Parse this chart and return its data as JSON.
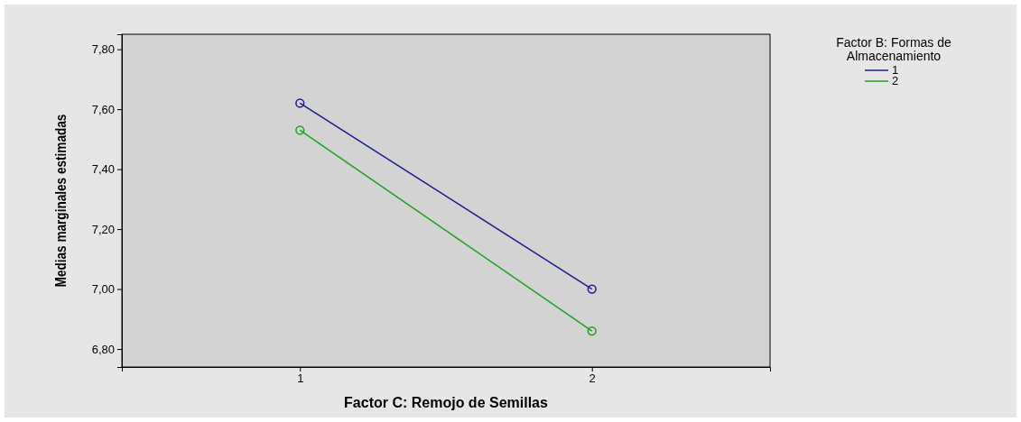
{
  "chart_data": {
    "type": "line",
    "xlabel": "Factor C: Remojo de Semillas",
    "ylabel": "Medias marginales estimadas",
    "legend_title": "Factor B: Formas de Almacenamiento",
    "categories": [
      "1",
      "2"
    ],
    "series": [
      {
        "name": "1",
        "color": "#1c1c8c",
        "values": [
          7.62,
          7.0
        ]
      },
      {
        "name": "2",
        "color": "#20a020",
        "values": [
          7.53,
          6.86
        ]
      }
    ],
    "ylim": [
      6.74,
      7.85
    ],
    "yticks": [
      {
        "value": 6.8,
        "label": "6,80"
      },
      {
        "value": 7.0,
        "label": "7,00"
      },
      {
        "value": 7.2,
        "label": "7,20"
      },
      {
        "value": 7.4,
        "label": "7,40"
      },
      {
        "value": 7.6,
        "label": "7,60"
      },
      {
        "value": 7.8,
        "label": "7,80"
      }
    ],
    "marker": "circle",
    "line_style": "solid",
    "grid": false,
    "legend": "top right"
  }
}
